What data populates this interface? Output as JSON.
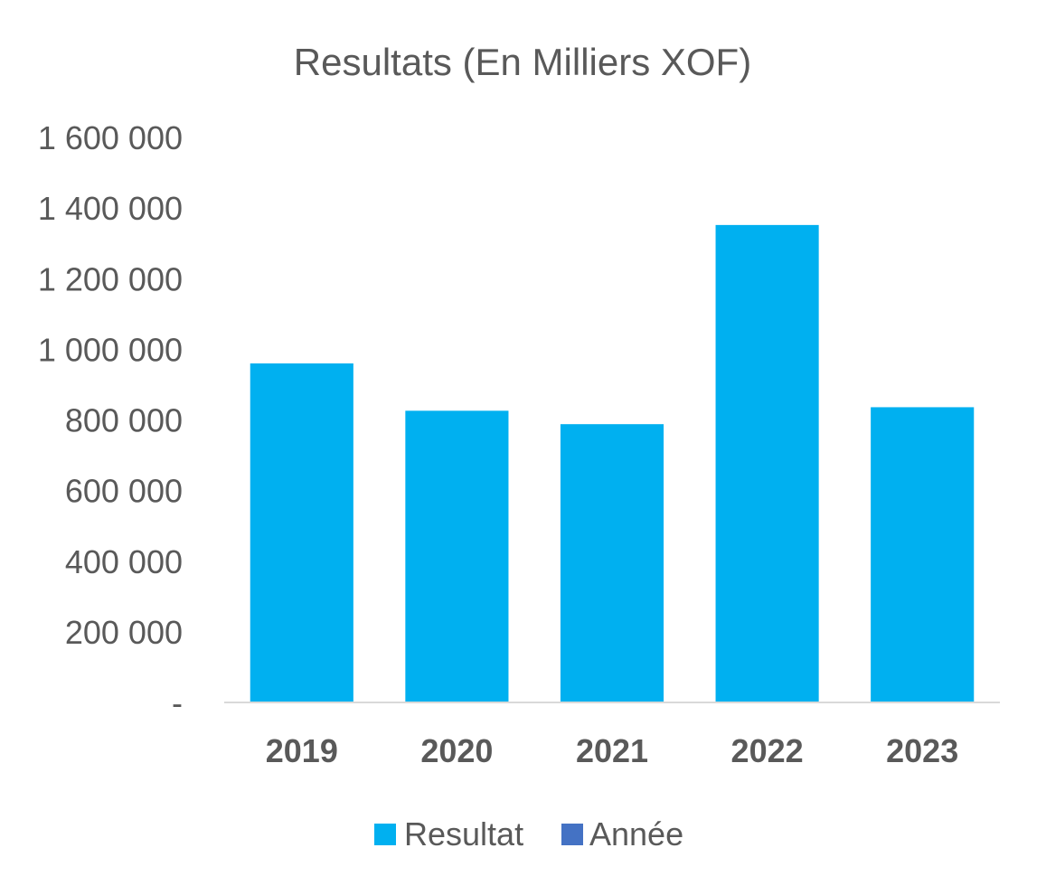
{
  "chart_data": {
    "type": "bar",
    "title": "Resultats (En Milliers XOF)",
    "categories": [
      "2019",
      "2020",
      "2021",
      "2022",
      "2023"
    ],
    "series": [
      {
        "name": "Resultat",
        "values": [
          960000,
          826000,
          788000,
          1352000,
          836000
        ],
        "color": "#00B0F0"
      },
      {
        "name": "Année",
        "values": [
          0,
          0,
          0,
          0,
          0
        ],
        "color": "#4472C4"
      }
    ],
    "yticks": [
      "-",
      "200 000",
      "400 000",
      "600 000",
      "800 000",
      "1 000 000",
      "1 200 000",
      "1 400 000",
      "1 600 000"
    ],
    "ylim": [
      0,
      1600000
    ],
    "grid": false,
    "legend_position": "bottom",
    "xlabel": "",
    "ylabel": ""
  }
}
